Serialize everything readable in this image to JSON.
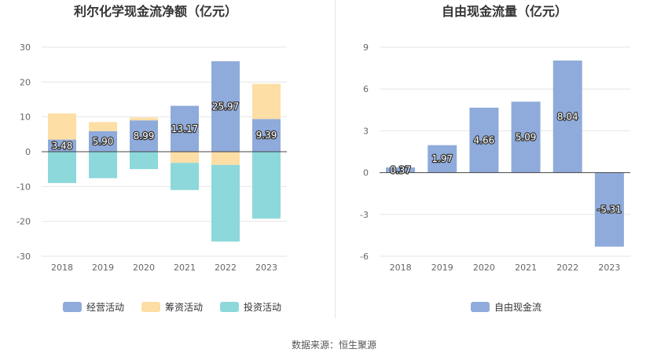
{
  "chart_data": [
    {
      "type": "bar",
      "stacked": true,
      "title": "利尔化学现金流净额（亿元）",
      "categories": [
        "2018",
        "2019",
        "2020",
        "2021",
        "2022",
        "2023"
      ],
      "ylim": [
        -30,
        30
      ],
      "yticks": [
        30,
        20,
        10,
        0,
        -10,
        -20,
        -30
      ],
      "grid": true,
      "legend": "bottom",
      "series": [
        {
          "name": "经营活动",
          "color": "#8fabdb",
          "values": [
            3.48,
            5.9,
            8.99,
            13.17,
            25.97,
            9.39
          ],
          "labels": [
            "3.48",
            "5.90",
            "8.99",
            "13.17",
            "25.97",
            "9.39"
          ]
        },
        {
          "name": "筹资活动",
          "color": "#fddea5",
          "values": [
            7.5,
            2.6,
            0.8,
            -3.2,
            -3.8,
            10.1
          ]
        },
        {
          "name": "投资活动",
          "color": "#8dd8da",
          "values": [
            -9.0,
            -7.6,
            -5.0,
            -7.8,
            -22.0,
            -19.2
          ]
        }
      ]
    },
    {
      "type": "bar",
      "title": "自由现金流量（亿元）",
      "categories": [
        "2018",
        "2019",
        "2020",
        "2021",
        "2022",
        "2023"
      ],
      "ylim": [
        -6,
        9
      ],
      "yticks": [
        9,
        6,
        3,
        0,
        -3,
        -6
      ],
      "grid": true,
      "legend": "bottom",
      "series": [
        {
          "name": "自由现金流",
          "color": "#8fabdb",
          "values": [
            0.37,
            1.97,
            4.66,
            5.09,
            8.04,
            -5.31
          ],
          "labels": [
            "0.37",
            "1.97",
            "4.66",
            "5.09",
            "8.04",
            "-5.31"
          ]
        }
      ]
    }
  ],
  "footer": {
    "source": "数据来源：恒生聚源"
  }
}
